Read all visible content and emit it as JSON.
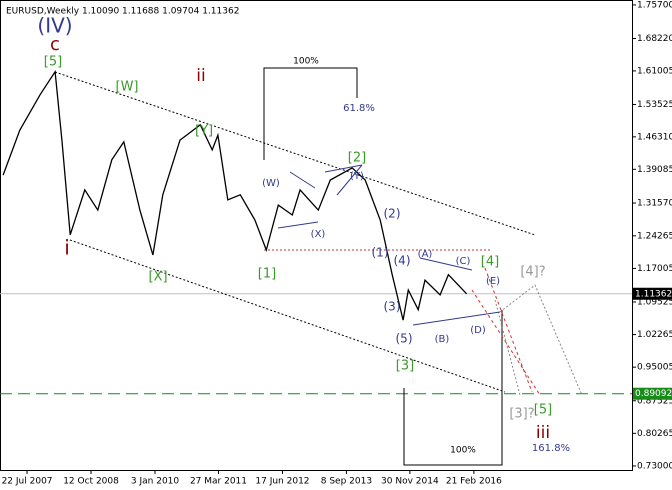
{
  "chart_data": {
    "type": "line",
    "title": "EURUSD,Weekly  1.10090 1.11688 1.09704 1.11362",
    "x": [
      2007.09,
      2007.41,
      2007.8,
      2008.09,
      2008.22,
      2008.38,
      2008.66,
      2008.91,
      2009.18,
      2009.41,
      2009.72,
      2009.97,
      2010.16,
      2010.49,
      2010.88,
      2011.11,
      2011.22,
      2011.41,
      2011.65,
      2011.93,
      2012.15,
      2012.38,
      2012.65,
      2012.8,
      2013.15,
      2013.38,
      2013.8,
      2014.05,
      2014.34,
      2014.57,
      2014.78,
      2014.88,
      2015.07,
      2015.2,
      2015.49,
      2015.65,
      2015.84,
      2016.0
    ],
    "values": [
      1.378,
      1.478,
      1.557,
      1.608,
      1.456,
      1.245,
      1.345,
      1.3,
      1.412,
      1.452,
      1.3,
      1.2,
      1.334,
      1.456,
      1.49,
      1.434,
      1.467,
      1.323,
      1.334,
      1.278,
      1.211,
      1.311,
      1.289,
      1.345,
      1.3,
      1.367,
      1.394,
      1.367,
      1.278,
      1.156,
      1.055,
      1.122,
      1.078,
      1.144,
      1.111,
      1.156,
      1.133,
      1.11362
    ],
    "color": "#000000",
    "xlim": [
      2007.03,
      2019.18
    ],
    "ylim": [
      0.721,
      1.768
    ],
    "xticks": [
      {
        "value": 2007.55,
        "label": "22 Jul 2007"
      },
      {
        "value": 2008.78,
        "label": "12 Oct 2008"
      },
      {
        "value": 2010.01,
        "label": "3 Jan 2010"
      },
      {
        "value": 2011.23,
        "label": "27 Mar 2011"
      },
      {
        "value": 2012.46,
        "label": "17 Jun 2012"
      },
      {
        "value": 2013.69,
        "label": "8 Sep 2013"
      },
      {
        "value": 2014.91,
        "label": "30 Nov 2014"
      },
      {
        "value": 2016.14,
        "label": "21 Feb 2016"
      }
    ],
    "yticks": [
      {
        "value": 1.757,
        "label": "1.75700"
      },
      {
        "value": 1.6822,
        "label": "1.68220"
      },
      {
        "value": 1.61005,
        "label": "1.61005"
      },
      {
        "value": 1.53525,
        "label": "1.53525"
      },
      {
        "value": 1.4631,
        "label": "1.46310"
      },
      {
        "value": 1.39085,
        "label": "1.39085"
      },
      {
        "value": 1.3157,
        "label": "1.31570"
      },
      {
        "value": 1.24265,
        "label": "1.24265"
      },
      {
        "value": 1.17005,
        "label": "1.17005"
      },
      {
        "value": 1.09525,
        "label": "1.09525"
      },
      {
        "value": 1.02265,
        "label": "1.02265"
      },
      {
        "value": 0.95005,
        "label": "0.95005"
      },
      {
        "value": 0.87525,
        "label": "0.87525"
      },
      {
        "value": 0.80265,
        "label": "0.80265"
      },
      {
        "value": 0.73,
        "label": "0.73000"
      }
    ],
    "price_lines": [
      {
        "value": 1.11362,
        "label": "1.11362",
        "color": "#c0c0c0",
        "label_bg": "#000000"
      },
      {
        "value": 0.89092,
        "label": "0.89092",
        "color": "#1a8a1a",
        "label_bg": "#1a8a1a"
      }
    ],
    "annotations": [
      "(IV)",
      "c",
      "[5]",
      "[W]",
      "ii",
      "[Y]",
      "100%",
      "61.8%",
      "[2]",
      "(Y)",
      "(W)",
      "(X)",
      "(2)",
      "(1)",
      "(4)",
      "(A)",
      "(C)",
      "[4]",
      "[4]?",
      "(E)",
      "(3)",
      "(D)",
      "(5)",
      "(B)",
      "[3]",
      "i",
      "[X]",
      "[1]",
      "[3]?",
      "[5]",
      "iii",
      "100%",
      "161.8%"
    ]
  }
}
